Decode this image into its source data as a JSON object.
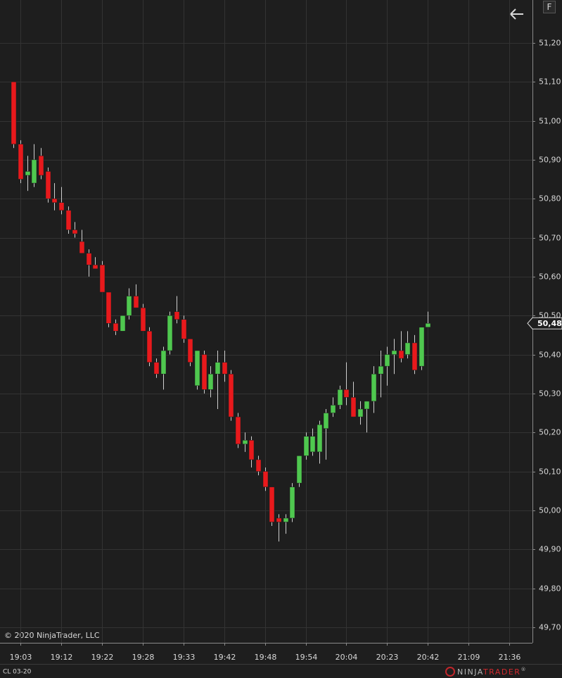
{
  "chart_data": {
    "type": "candlestick",
    "instrument": "CL 03-20",
    "copyright": "© 2020 NinjaTrader, LLC",
    "button": "F",
    "logo": {
      "first": "NINJA",
      "second": "TRADER",
      "mark": "®"
    },
    "open": [
      51.1,
      50.94,
      50.86,
      50.84,
      50.91,
      50.87,
      50.8,
      50.79,
      50.77,
      50.72,
      50.69,
      50.66,
      50.63,
      50.63,
      50.56,
      50.48,
      50.46,
      50.5,
      50.55,
      50.52,
      50.46,
      50.38,
      50.35,
      50.41,
      50.51,
      50.49,
      50.44,
      50.32,
      50.4,
      50.31,
      50.35,
      50.38,
      50.35,
      50.24,
      50.17,
      50.18,
      50.13,
      50.1,
      50.06,
      49.98,
      49.97,
      49.98,
      50.07,
      50.14,
      50.15,
      50.15,
      50.21,
      50.25,
      50.27,
      50.31,
      50.29,
      50.24,
      50.26,
      50.28,
      50.35,
      50.37,
      50.4,
      50.41,
      50.4,
      50.43,
      50.37,
      50.47
    ],
    "high": [
      51.1,
      50.95,
      50.91,
      50.94,
      50.93,
      50.88,
      50.84,
      50.83,
      50.78,
      50.74,
      50.72,
      50.67,
      50.65,
      50.64,
      50.56,
      50.49,
      50.5,
      50.57,
      50.58,
      50.53,
      50.47,
      50.39,
      50.42,
      50.51,
      50.55,
      50.5,
      50.44,
      50.41,
      50.41,
      50.37,
      50.41,
      50.41,
      50.36,
      50.25,
      50.2,
      50.19,
      50.14,
      50.11,
      50.06,
      49.99,
      49.99,
      50.07,
      50.14,
      50.2,
      50.21,
      50.23,
      50.26,
      50.29,
      50.32,
      50.38,
      50.33,
      50.28,
      50.28,
      50.37,
      50.41,
      50.42,
      50.44,
      50.46,
      50.46,
      50.45,
      50.47,
      50.51
    ],
    "low": [
      50.93,
      50.84,
      50.82,
      50.83,
      50.85,
      50.79,
      50.77,
      50.76,
      50.71,
      50.7,
      50.66,
      50.6,
      50.62,
      50.56,
      50.47,
      50.45,
      50.46,
      50.49,
      50.52,
      50.46,
      50.37,
      50.34,
      50.31,
      50.4,
      50.48,
      50.43,
      50.37,
      50.31,
      50.3,
      50.29,
      50.26,
      50.33,
      50.23,
      50.16,
      50.15,
      50.11,
      50.09,
      50.05,
      49.96,
      49.92,
      49.94,
      49.97,
      50.06,
      50.13,
      50.14,
      50.12,
      50.13,
      50.24,
      50.26,
      50.27,
      50.24,
      50.22,
      50.2,
      50.25,
      50.29,
      50.32,
      50.35,
      50.38,
      50.39,
      50.35,
      50.36,
      50.47
    ],
    "close": [
      50.94,
      50.85,
      50.87,
      50.9,
      50.86,
      50.8,
      50.79,
      50.77,
      50.72,
      50.71,
      50.66,
      50.63,
      50.62,
      50.56,
      50.48,
      50.46,
      50.5,
      50.55,
      50.52,
      50.46,
      50.38,
      50.35,
      50.41,
      50.5,
      50.49,
      50.44,
      50.38,
      50.41,
      50.31,
      50.35,
      50.38,
      50.35,
      50.24,
      50.17,
      50.18,
      50.13,
      50.1,
      50.06,
      49.97,
      49.97,
      49.98,
      50.06,
      50.14,
      50.19,
      50.19,
      50.22,
      50.25,
      50.27,
      50.31,
      50.29,
      50.24,
      50.26,
      50.28,
      50.35,
      50.37,
      50.4,
      50.41,
      50.39,
      50.43,
      50.36,
      50.47,
      50.48
    ],
    "colors": {
      "up": "#4fc84f",
      "down": "#e8191c"
    },
    "last_value": 50.48,
    "last_value_label": "50,48",
    "ylim": [
      49.66,
      51.31
    ],
    "yticks": [
      {
        "value": 49.7,
        "label": "49,70"
      },
      {
        "value": 49.8,
        "label": "49,80"
      },
      {
        "value": 49.9,
        "label": "49,90"
      },
      {
        "value": 50.0,
        "label": "50,00"
      },
      {
        "value": 50.1,
        "label": "50,10"
      },
      {
        "value": 50.2,
        "label": "50,20"
      },
      {
        "value": 50.3,
        "label": "50,30"
      },
      {
        "value": 50.4,
        "label": "50,40"
      },
      {
        "value": 50.5,
        "label": "50,50"
      },
      {
        "value": 50.6,
        "label": "50,60"
      },
      {
        "value": 50.7,
        "label": "50,70"
      },
      {
        "value": 50.8,
        "label": "50,80"
      },
      {
        "value": 50.9,
        "label": "50,90"
      },
      {
        "value": 51.0,
        "label": "51,00"
      },
      {
        "value": 51.1,
        "label": "51,10"
      },
      {
        "value": 51.2,
        "label": "51,20"
      }
    ],
    "xlim": [
      -2,
      76.4
    ],
    "xticks": [
      {
        "value": 1,
        "label": "19:03"
      },
      {
        "value": 7,
        "label": "19:12"
      },
      {
        "value": 13,
        "label": "19:22"
      },
      {
        "value": 19,
        "label": "19:28"
      },
      {
        "value": 25,
        "label": "19:33"
      },
      {
        "value": 31,
        "label": "19:42"
      },
      {
        "value": 37,
        "label": "19:48"
      },
      {
        "value": 43,
        "label": "19:54"
      },
      {
        "value": 49,
        "label": "20:04"
      },
      {
        "value": 55,
        "label": "20:23"
      },
      {
        "value": 61,
        "label": "20:42"
      },
      {
        "value": 67,
        "label": "21:09"
      },
      {
        "value": 73,
        "label": "21:36"
      }
    ],
    "grid": true
  }
}
